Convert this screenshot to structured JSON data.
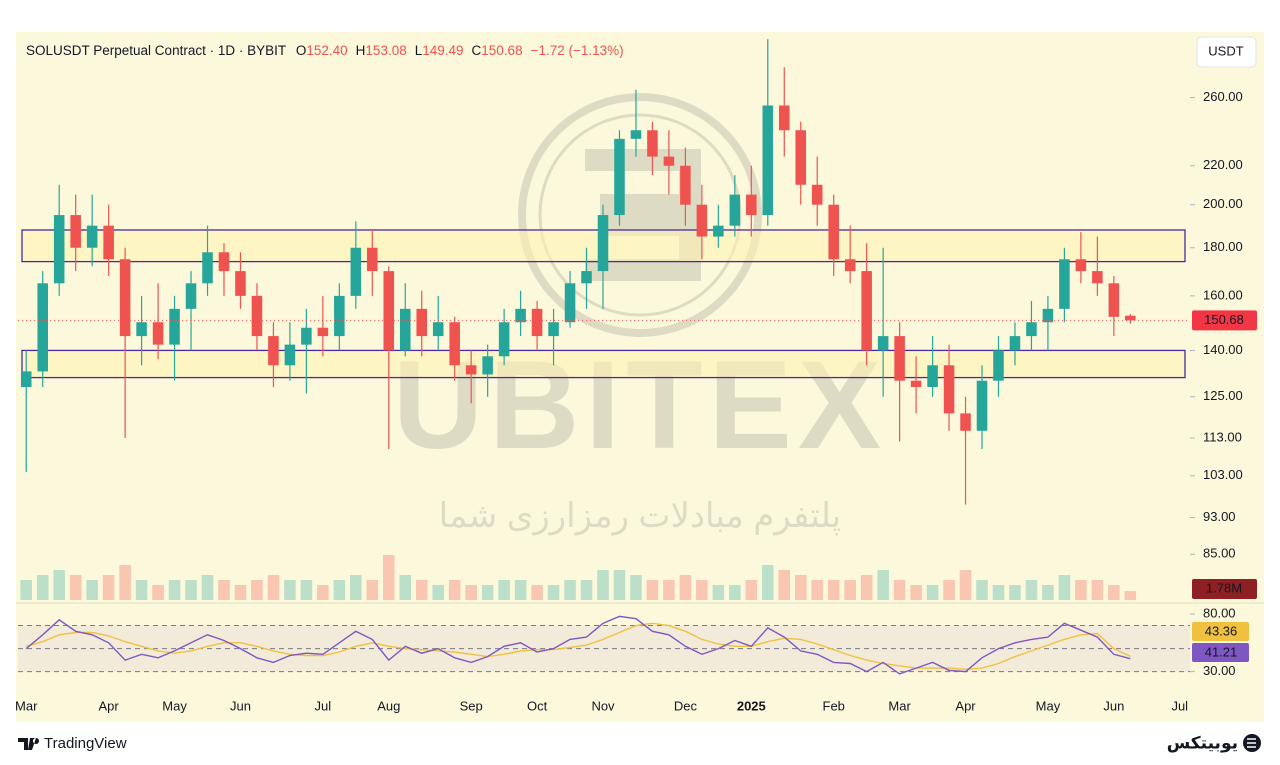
{
  "chart_data": {
    "type": "candlestick",
    "title": "SOLUSDT Perpetual Contract · 1D · BYBIT",
    "ohlc_legend": [
      {
        "key": "O",
        "value": "152.40"
      },
      {
        "key": "H",
        "value": "153.08"
      },
      {
        "key": "L",
        "value": "149.49"
      },
      {
        "key": "C",
        "value": "150.68"
      }
    ],
    "change": "−1.72 (−1.13%)",
    "currency": "USDT",
    "categories": [
      "Mar",
      null,
      null,
      null,
      null,
      "Apr",
      null,
      null,
      null,
      "May",
      null,
      null,
      null,
      "Jun",
      null,
      null,
      null,
      null,
      "Jul",
      null,
      null,
      null,
      "Aug",
      null,
      null,
      null,
      null,
      "Sep",
      null,
      null,
      null,
      "Oct",
      null,
      null,
      null,
      "Nov",
      null,
      null,
      null,
      null,
      "Dec",
      null,
      null,
      null,
      "2025",
      null,
      null,
      null,
      null,
      "Feb",
      null,
      null,
      null,
      "Mar",
      null,
      null,
      null,
      "Apr",
      null,
      null,
      null,
      null,
      "May",
      null,
      null,
      null,
      "Jun",
      null,
      null,
      null,
      "Jul"
    ],
    "open": [
      128,
      133,
      165,
      195,
      180,
      190,
      175,
      145,
      150,
      142,
      155,
      165,
      178,
      170,
      160,
      145,
      135,
      142,
      148,
      145,
      160,
      180,
      170,
      140,
      155,
      145,
      150,
      135,
      132,
      138,
      150,
      155,
      145,
      150,
      165,
      170,
      195,
      235,
      240,
      225,
      220,
      200,
      185,
      190,
      205,
      195,
      255,
      240,
      210,
      200,
      175,
      170,
      140,
      145,
      130,
      128,
      135,
      120,
      115,
      130,
      140,
      145,
      150,
      155,
      175,
      170,
      165,
      152.4,
      null,
      null,
      null
    ],
    "high": [
      140,
      170,
      210,
      205,
      205,
      200,
      180,
      160,
      165,
      160,
      170,
      190,
      182,
      178,
      165,
      150,
      150,
      155,
      160,
      165,
      192,
      188,
      172,
      165,
      162,
      160,
      152,
      140,
      142,
      155,
      162,
      158,
      155,
      170,
      180,
      200,
      240,
      265,
      245,
      240,
      230,
      210,
      200,
      215,
      220,
      300,
      280,
      245,
      225,
      205,
      190,
      182,
      180,
      150,
      138,
      145,
      142,
      125,
      135,
      145,
      150,
      158,
      160,
      180,
      187,
      185,
      168,
      153.08,
      null,
      null,
      null
    ],
    "low": [
      104,
      128,
      160,
      170,
      172,
      168,
      113,
      135,
      137,
      130,
      140,
      160,
      160,
      155,
      140,
      128,
      130,
      126,
      138,
      140,
      155,
      160,
      110,
      138,
      138,
      140,
      130,
      123,
      125,
      135,
      145,
      140,
      135,
      148,
      155,
      155,
      190,
      225,
      215,
      205,
      190,
      175,
      180,
      185,
      185,
      190,
      225,
      200,
      190,
      168,
      165,
      135,
      125,
      112,
      120,
      125,
      115,
      96,
      110,
      125,
      135,
      140,
      140,
      150,
      165,
      160,
      145,
      149.49,
      null,
      null,
      null
    ],
    "close": [
      133,
      165,
      195,
      180,
      190,
      175,
      145,
      150,
      142,
      155,
      165,
      178,
      170,
      160,
      145,
      135,
      142,
      148,
      145,
      160,
      180,
      170,
      140,
      155,
      145,
      150,
      135,
      132,
      138,
      150,
      155,
      145,
      150,
      165,
      170,
      195,
      235,
      240,
      225,
      220,
      200,
      185,
      190,
      205,
      195,
      255,
      240,
      210,
      200,
      175,
      170,
      140,
      145,
      130,
      128,
      135,
      120,
      115,
      130,
      140,
      145,
      150,
      155,
      175,
      170,
      165,
      152,
      150.68,
      null,
      null,
      null
    ],
    "up_color": "#26a69a",
    "down_color": "#ef5350",
    "log_scale": true,
    "ylim": [
      76,
      303
    ],
    "yticks": [
      {
        "value": 85,
        "label": "85.00"
      },
      {
        "value": 93,
        "label": "93.00"
      },
      {
        "value": 103,
        "label": "103.00"
      },
      {
        "value": 113,
        "label": "113.00"
      },
      {
        "value": 125,
        "label": "125.00"
      },
      {
        "value": 140,
        "label": "140.00"
      },
      {
        "value": 160,
        "label": "160.00"
      },
      {
        "value": 180,
        "label": "180.00"
      },
      {
        "value": 200,
        "label": "200.00"
      },
      {
        "value": 220,
        "label": "220.00"
      },
      {
        "value": 260,
        "label": "260.00"
      }
    ],
    "last_price_line": true,
    "zones": [
      {
        "top": 188,
        "bottom": 174
      },
      {
        "top": 140,
        "bottom": 131
      }
    ],
    "zone_color": "#4a2a9c",
    "volume": {
      "values": [
        4,
        5,
        6,
        5,
        4,
        5,
        7,
        4,
        3,
        4,
        4,
        5,
        4,
        3,
        4,
        5,
        4,
        4,
        3,
        4,
        5,
        4,
        9,
        5,
        4,
        3,
        4,
        3,
        3,
        4,
        4,
        3,
        3,
        4,
        4,
        6,
        6,
        5,
        4,
        4,
        5,
        4,
        3,
        3,
        4,
        7,
        6,
        5,
        4,
        4,
        4,
        5,
        6,
        4,
        3,
        3,
        4,
        6,
        4,
        3,
        3,
        4,
        3,
        5,
        4,
        4,
        3,
        1.78,
        null,
        null,
        null
      ],
      "ylim": [
        0,
        12
      ],
      "last_label": "1.78M"
    },
    "rsi": {
      "values": [
        50,
        62,
        75,
        65,
        62,
        55,
        40,
        45,
        42,
        48,
        55,
        62,
        57,
        50,
        42,
        38,
        44,
        46,
        45,
        55,
        65,
        58,
        40,
        52,
        46,
        50,
        42,
        38,
        43,
        52,
        55,
        47,
        50,
        58,
        60,
        72,
        78,
        76,
        65,
        62,
        52,
        45,
        50,
        57,
        52,
        68,
        60,
        48,
        45,
        38,
        37,
        30,
        38,
        28,
        33,
        38,
        31,
        30,
        42,
        50,
        55,
        58,
        60,
        72,
        66,
        60,
        45,
        41.21,
        null,
        null,
        null
      ],
      "ma": [
        52,
        56,
        62,
        64,
        64,
        61,
        56,
        52,
        48,
        46,
        48,
        52,
        55,
        55,
        52,
        48,
        45,
        44,
        44,
        47,
        52,
        55,
        52,
        50,
        49,
        48,
        47,
        45,
        43,
        45,
        48,
        49,
        49,
        51,
        53,
        58,
        64,
        70,
        72,
        70,
        65,
        58,
        54,
        52,
        52,
        56,
        59,
        58,
        54,
        49,
        44,
        40,
        37,
        35,
        33,
        33,
        33,
        32,
        33,
        37,
        43,
        48,
        53,
        58,
        62,
        63,
        50,
        43.36,
        null,
        null,
        null
      ],
      "color": "#7e57c2",
      "ma_color": "#f0c040",
      "ylim": [
        14,
        87
      ],
      "yticks": [
        {
          "value": 80,
          "label": "80.00"
        },
        {
          "value": 30,
          "label": "30.00"
        }
      ],
      "bands": [
        70,
        50,
        30
      ]
    }
  },
  "watermark": {
    "brand": "UBITEX",
    "tagline": "پلتفرم مبادلات رمزارزی شما"
  },
  "footer": {
    "left": "TradingView",
    "right": "یوبیتکس"
  }
}
